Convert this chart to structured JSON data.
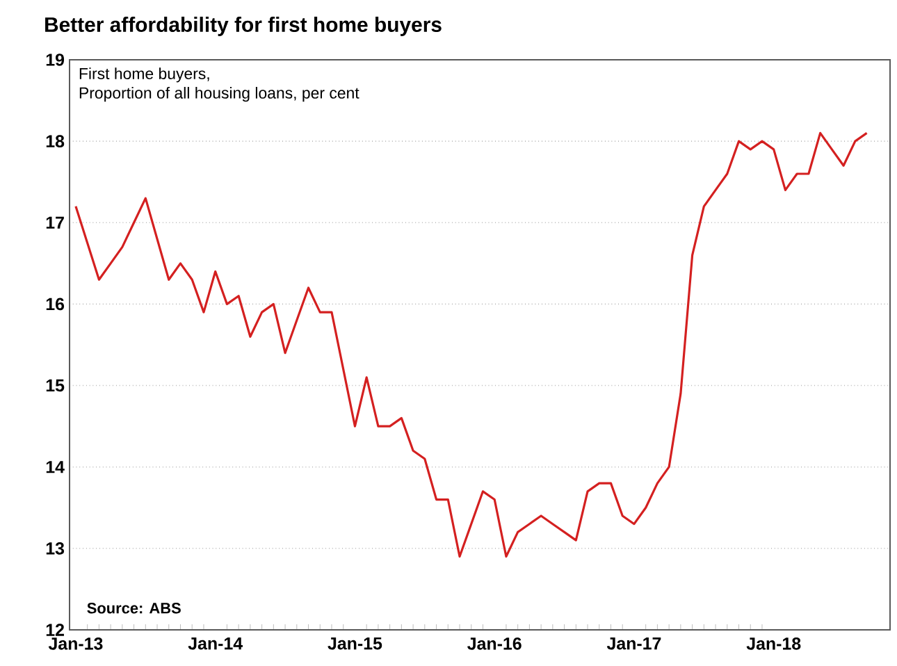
{
  "chart_data": {
    "type": "line",
    "title": "Better affordability for first home buyers",
    "subtitle": "First home buyers,",
    "ylabel": "Proportion of all housing loans, per cent",
    "annotations": [
      "**Source: ABS**"
    ],
    "x": [
      "2013-01",
      "2013-02",
      "2013-03",
      "2013-04",
      "2013-05",
      "2013-06",
      "2013-07",
      "2013-08",
      "2013-09",
      "2013-10",
      "2013-11",
      "2013-12",
      "2014-01",
      "2014-02",
      "2014-03",
      "2014-04",
      "2014-05",
      "2014-06",
      "2014-07",
      "2014-08",
      "2014-09",
      "2014-10",
      "2014-11",
      "2014-12",
      "2015-01",
      "2015-02",
      "2015-03",
      "2015-04",
      "2015-05",
      "2015-06",
      "2015-07",
      "2015-08",
      "2015-09",
      "2015-10",
      "2015-11",
      "2015-12",
      "2016-01",
      "2016-02",
      "2016-03",
      "2016-04",
      "2016-05",
      "2016-06",
      "2016-07",
      "2016-08",
      "2016-09",
      "2016-10",
      "2016-11",
      "2016-12",
      "2017-01",
      "2017-02",
      "2017-03",
      "2017-04",
      "2017-05",
      "2017-06",
      "2017-07",
      "2017-08",
      "2017-09",
      "2017-10",
      "2017-11",
      "2017-12",
      "2018-01",
      "2018-02",
      "2018-03",
      "2018-04",
      "2018-05",
      "2018-06",
      "2018-07",
      "2018-08",
      "2018-09"
    ],
    "series": [
      {
        "color": "#d42020",
        "values": [
          17.2,
          16.75,
          16.3,
          16.5,
          16.7,
          17.0,
          17.3,
          16.8,
          16.3,
          16.5,
          16.3,
          15.9,
          16.4,
          16.0,
          16.1,
          15.6,
          15.9,
          16.0,
          15.4,
          15.8,
          16.2,
          15.9,
          15.9,
          15.2,
          14.5,
          15.1,
          14.5,
          14.5,
          14.6,
          14.2,
          14.1,
          13.6,
          13.6,
          12.9,
          13.3,
          13.7,
          13.6,
          12.9,
          13.2,
          13.3,
          13.4,
          13.3,
          13.2,
          13.1,
          13.7,
          13.8,
          13.8,
          13.4,
          13.3,
          13.5,
          13.8,
          14.0,
          14.9,
          16.6,
          17.2,
          17.4,
          17.6,
          18.0,
          17.9,
          18.0,
          17.9,
          17.4,
          17.6,
          17.6,
          18.1,
          17.9,
          17.7,
          18.0,
          18.1
        ]
      }
    ],
    "xlim": [
      "2012-12-15",
      "2018-11"
    ],
    "xticks": [
      {
        "value": "2013-01",
        "label": "Jan-13"
      },
      {
        "value": "2014-01",
        "label": "Jan-14"
      },
      {
        "value": "2015-01",
        "label": "Jan-15"
      },
      {
        "value": "2016-01",
        "label": "Jan-16"
      },
      {
        "value": "2017-01",
        "label": "Jan-17"
      },
      {
        "value": "2018-01",
        "label": "Jan-18"
      }
    ],
    "ylim": [
      12,
      19
    ],
    "yticks": [
      12,
      13,
      14,
      15,
      16,
      17,
      18,
      19
    ],
    "grid": "y",
    "marker": "none",
    "line_style": "solid"
  }
}
